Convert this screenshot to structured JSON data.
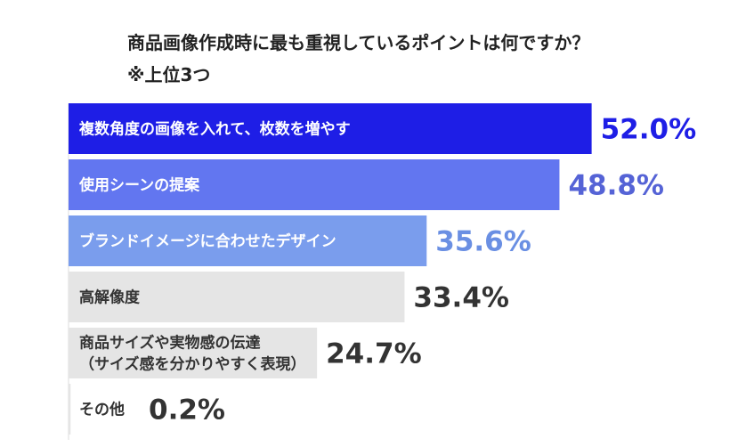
{
  "title": "商品画像作成時に最も重視しているポイントは何ですか？",
  "subtitle": "※上位3つ",
  "chart_data": {
    "type": "bar",
    "orientation": "horizontal",
    "categories": [
      [
        "複数角度の画像を入れて、枚数を増やす"
      ],
      [
        "使用シーンの提案"
      ],
      [
        "ブランドイメージに合わせたデザイン"
      ],
      [
        "高解像度"
      ],
      [
        "商品サイズや実物感の伝達",
        "（サイズ感を分かりやすく表現）"
      ],
      [
        "その他"
      ]
    ],
    "values": [
      52.0,
      48.8,
      35.6,
      33.4,
      24.7,
      0.2
    ],
    "value_labels": [
      "52.0%",
      "48.8%",
      "35.6%",
      "33.4%",
      "24.7%",
      "0.2%"
    ],
    "colors": [
      "#1e1ee6",
      "#6276f0",
      "#7a9ded",
      "#e5e5e5",
      "#e5e5e5",
      "#e5e5e5"
    ],
    "label_colors": [
      "#ffffff",
      "#ffffff",
      "#ffffff",
      "#333333",
      "#333333",
      "#333333"
    ],
    "value_colors": [
      "#1e1ee6",
      "#5563d6",
      "#6a8fe3",
      "#333333",
      "#333333",
      "#333333"
    ],
    "unit": "%"
  }
}
